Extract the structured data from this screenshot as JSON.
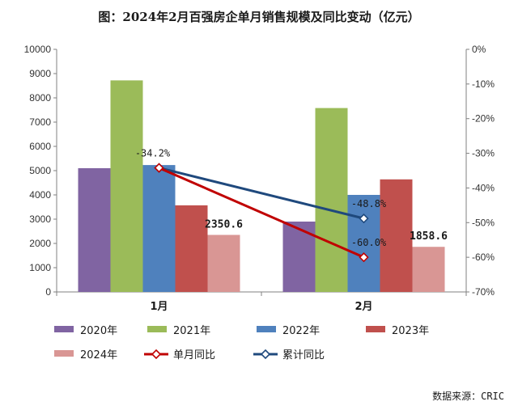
{
  "chart_data": {
    "type": "bar",
    "title": "图：2024年2月百强房企单月销售规模及同比变动（亿元）",
    "categories": [
      "1月",
      "2月"
    ],
    "series": [
      {
        "name": "2020年",
        "type": "bar",
        "axis": "left",
        "color": "#8064a2",
        "values": [
          5100,
          2900
        ]
      },
      {
        "name": "2021年",
        "type": "bar",
        "axis": "left",
        "color": "#9bbb59",
        "values": [
          8720,
          7580
        ]
      },
      {
        "name": "2022年",
        "type": "bar",
        "axis": "left",
        "color": "#4f81bd",
        "values": [
          5230,
          4000
        ]
      },
      {
        "name": "2023年",
        "type": "bar",
        "axis": "left",
        "color": "#c0504d",
        "values": [
          3570,
          4640
        ]
      },
      {
        "name": "2024年",
        "type": "bar",
        "axis": "left",
        "color": "#d99694",
        "values": [
          2350.6,
          1858.6
        ]
      },
      {
        "name": "单月同比",
        "type": "line",
        "axis": "right",
        "color": "#c00000",
        "values": [
          -34.2,
          -60.0
        ]
      },
      {
        "name": "累计同比",
        "type": "line",
        "axis": "right",
        "color": "#1f497d",
        "values": [
          -34.2,
          -48.8
        ]
      }
    ],
    "y_left": {
      "min": 0,
      "max": 10000,
      "ticks": [
        "0",
        "1000",
        "2000",
        "3000",
        "4000",
        "5000",
        "6000",
        "7000",
        "8000",
        "9000",
        "10000"
      ]
    },
    "y_right": {
      "min": -70,
      "max": 0,
      "ticks": [
        "-70%",
        "-60%",
        "-50%",
        "-40%",
        "-30%",
        "-20%",
        "-10%",
        "0%"
      ]
    },
    "value_labels": [
      "2350.6",
      "1858.6"
    ],
    "line_labels": [
      "-34.2%",
      "-60.0%",
      "-48.8%"
    ],
    "grid": false,
    "legend_position": "bottom",
    "source": "数据来源：CRIC"
  }
}
